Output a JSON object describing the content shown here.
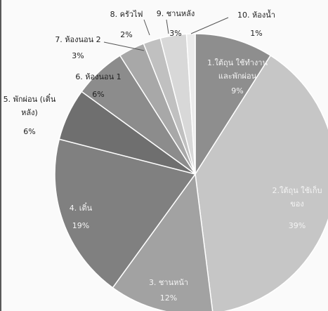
{
  "chart_data": {
    "type": "pie",
    "categories": [
      [
        "1.ใต้ถุน ใช้ทำงาน",
        "และพักผ่อน"
      ],
      [
        "2.ใต้ถุน ใช้เก็บ",
        "ของ"
      ],
      [
        "3. ชานหน้า"
      ],
      [
        "4. เติ๋น"
      ],
      [
        "5. พักผ่อน (เติ๋น",
        "หลัง)"
      ],
      [
        "6. ห้องนอน 1"
      ],
      [
        "7. ห้องนอน 2"
      ],
      [
        "8. ครัวไฟ"
      ],
      [
        "9. ชานหลัง"
      ],
      [
        "10. ห้องน้ำ"
      ]
    ],
    "values": [
      9,
      39,
      12,
      19,
      6,
      6,
      3,
      2,
      3,
      1
    ],
    "value_labels": [
      "9%",
      "39%",
      "12%",
      "19%",
      "6%",
      "6%",
      "3%",
      "2%",
      "3%",
      "1%"
    ],
    "colors": [
      "#8e8e8e",
      "#c6c6c6",
      "#a2a2a2",
      "#808080",
      "#6f6f6f",
      "#8c8c8c",
      "#a8a8a8",
      "#c0c0c0",
      "#d8d8d8",
      "#ececec"
    ]
  }
}
